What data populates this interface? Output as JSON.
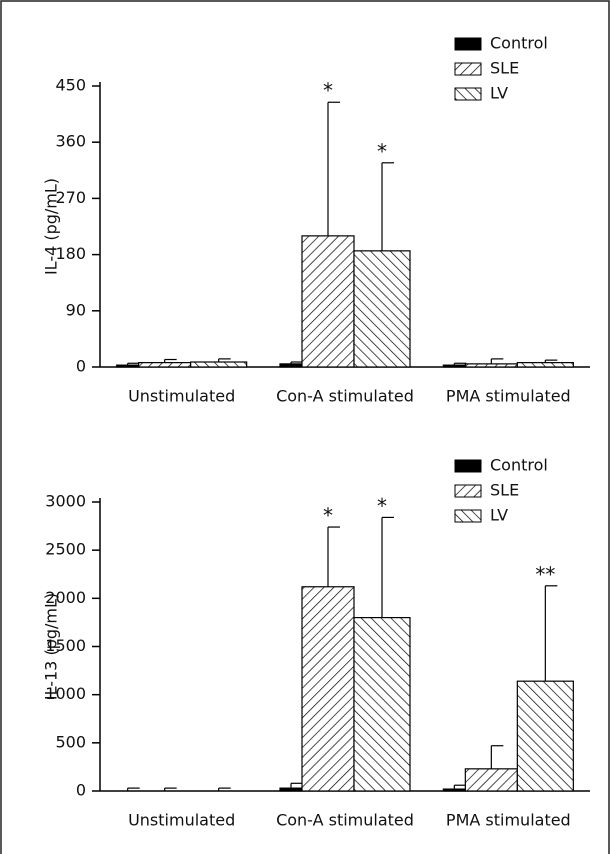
{
  "chart_data": [
    {
      "type": "bar",
      "ylabel": "IL-4 (pg/mL)",
      "categories": [
        "Unstimulated",
        "Con-A stimulated",
        "PMA stimulated"
      ],
      "series": [
        {
          "name": "Control",
          "color": "#000000",
          "hatch": "solid",
          "values": [
            3,
            5,
            3
          ],
          "errors": [
            3,
            3,
            3
          ]
        },
        {
          "name": "SLE",
          "color": "#000000",
          "hatch": "/",
          "values": [
            7,
            210,
            5
          ],
          "errors": [
            5,
            214,
            8
          ]
        },
        {
          "name": "LV",
          "color": "#000000",
          "hatch": "\\",
          "values": [
            8,
            186,
            7
          ],
          "errors": [
            5,
            141,
            4
          ]
        }
      ],
      "annotations": [
        {
          "text": "*",
          "series": 1,
          "category": 1
        },
        {
          "text": "*",
          "series": 2,
          "category": 1
        }
      ],
      "ylim": [
        0,
        450
      ],
      "yticks": [
        0,
        90,
        180,
        270,
        360,
        450
      ],
      "legend": "top-right",
      "grid": false
    },
    {
      "type": "bar",
      "ylabel": "IL-13 (pg/mL)",
      "categories": [
        "Unstimulated",
        "Con-A stimulated",
        "PMA stimulated"
      ],
      "series": [
        {
          "name": "Control",
          "color": "#000000",
          "hatch": "solid",
          "values": [
            0,
            30,
            20
          ],
          "errors": [
            30,
            50,
            40
          ]
        },
        {
          "name": "SLE",
          "color": "#000000",
          "hatch": "/",
          "values": [
            0,
            2120,
            230
          ],
          "errors": [
            30,
            620,
            240
          ]
        },
        {
          "name": "LV",
          "color": "#000000",
          "hatch": "\\",
          "values": [
            0,
            1800,
            1140
          ],
          "errors": [
            30,
            1040,
            990
          ]
        }
      ],
      "annotations": [
        {
          "text": "*",
          "series": 1,
          "category": 1
        },
        {
          "text": "*",
          "series": 2,
          "category": 1
        },
        {
          "text": "**",
          "series": 2,
          "category": 2
        }
      ],
      "ylim": [
        0,
        3000
      ],
      "yticks": [
        0,
        500,
        1000,
        1500,
        2000,
        2500,
        3000
      ],
      "legend": "top-right",
      "grid": false
    }
  ]
}
